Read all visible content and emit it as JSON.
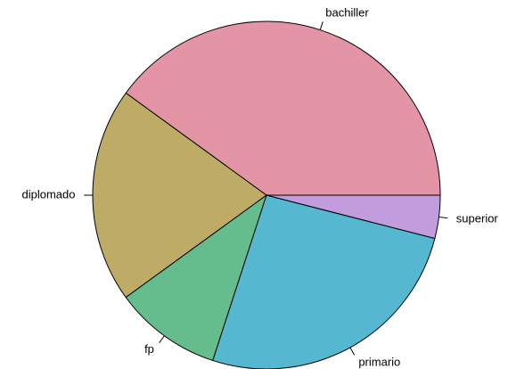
{
  "chart_data": {
    "type": "pie",
    "categories": [
      "bachiller",
      "diplomado",
      "fp",
      "primario",
      "superior"
    ],
    "values": [
      40,
      20,
      10,
      26,
      4
    ],
    "colors": [
      "#e495a5",
      "#bdab66",
      "#65bc8c",
      "#55b8d0",
      "#c29dde"
    ]
  }
}
